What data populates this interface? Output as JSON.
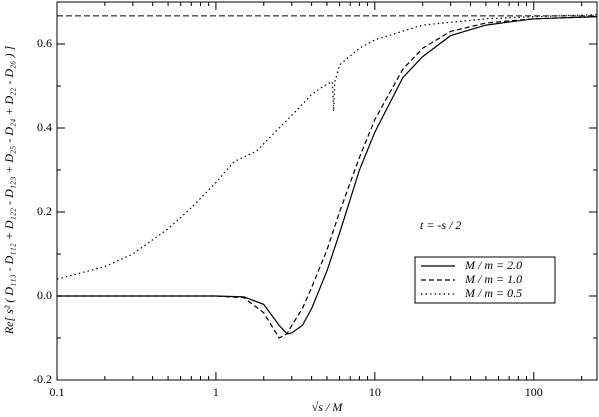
{
  "chart_data": {
    "type": "line",
    "xlabel": "√s / M",
    "ylabel": "Re[ s² ( D₁₁₃ - D₁₁₂ + D₁₂₂ - D₁₂₃ + D₂₅ - D₂₄ + D₂₂ - D₂₆ ) ]",
    "annotation": "t = -s / 2",
    "xscale": "log",
    "xlim": [
      0.1,
      250
    ],
    "ylim": [
      -0.2,
      0.7
    ],
    "xticks": [
      0.1,
      1,
      10,
      100
    ],
    "yticks": [
      -0.2,
      {
        "value": 0,
        "label": "0.0"
      },
      0.2,
      0.4,
      0.6
    ],
    "hline": 0.667,
    "legend": "lower right",
    "series": [
      {
        "name": "M / m = 2.0",
        "color": "#000000",
        "dash": "solid",
        "x": [
          0.1,
          0.5,
          1,
          1.5,
          2,
          2.5,
          2.8,
          3,
          3.5,
          4,
          5,
          6,
          7,
          8,
          10,
          15,
          20,
          30,
          50,
          100,
          250
        ],
        "values": [
          0,
          0,
          0,
          -0.002,
          -0.02,
          -0.07,
          -0.09,
          -0.088,
          -0.07,
          -0.03,
          0.06,
          0.15,
          0.23,
          0.3,
          0.39,
          0.52,
          0.57,
          0.62,
          0.645,
          0.66,
          0.665
        ]
      },
      {
        "name": "M / m = 1.0",
        "color": "#000000",
        "dash": "dashed",
        "x": [
          0.1,
          0.5,
          1,
          1.5,
          2,
          2.5,
          2.8,
          3,
          3.5,
          4,
          5,
          6,
          7,
          8,
          10,
          15,
          20,
          30,
          50,
          100,
          250
        ],
        "values": [
          0,
          0,
          0,
          -0.004,
          -0.04,
          -0.1,
          -0.09,
          -0.07,
          -0.03,
          0.02,
          0.11,
          0.2,
          0.27,
          0.33,
          0.42,
          0.54,
          0.59,
          0.63,
          0.65,
          0.66,
          0.665
        ]
      },
      {
        "name": "M / m = 0.5",
        "color": "#000000",
        "dash": "dotted",
        "x": [
          0.1,
          0.2,
          0.3,
          0.5,
          0.7,
          1,
          1.3,
          1.8,
          2.5,
          3,
          4,
          5,
          5.4,
          5.5,
          5.6,
          6,
          8,
          10,
          20,
          50,
          100,
          250
        ],
        "values": [
          0.04,
          0.07,
          0.1,
          0.16,
          0.21,
          0.27,
          0.32,
          0.345,
          0.4,
          0.43,
          0.48,
          0.505,
          0.51,
          0.44,
          0.51,
          0.55,
          0.59,
          0.61,
          0.645,
          0.66,
          0.665,
          0.67
        ]
      }
    ]
  }
}
